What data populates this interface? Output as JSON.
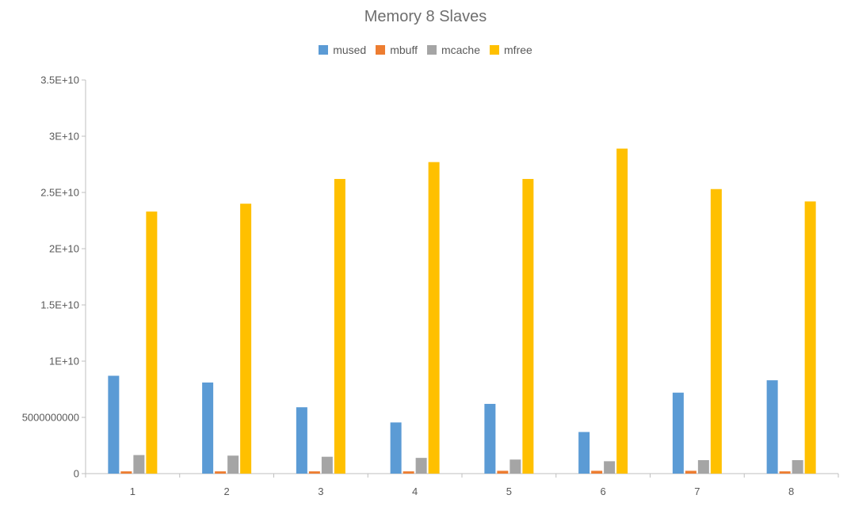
{
  "chart_data": {
    "type": "bar",
    "title": "Memory 8 Slaves",
    "xlabel": "",
    "ylabel": "",
    "categories": [
      "1",
      "2",
      "3",
      "4",
      "5",
      "6",
      "7",
      "8"
    ],
    "series": [
      {
        "name": "mused",
        "color": "#5b9bd5",
        "values": [
          8700000000,
          8100000000,
          5900000000,
          4550000000,
          6200000000,
          3700000000,
          7200000000,
          8300000000
        ]
      },
      {
        "name": "mbuff",
        "color": "#ed7d31",
        "values": [
          200000000,
          200000000,
          200000000,
          200000000,
          250000000,
          250000000,
          250000000,
          200000000
        ]
      },
      {
        "name": "mcache",
        "color": "#a5a5a5",
        "values": [
          1650000000,
          1600000000,
          1500000000,
          1400000000,
          1250000000,
          1100000000,
          1200000000,
          1200000000
        ]
      },
      {
        "name": "mfree",
        "color": "#ffc000",
        "values": [
          23300000000,
          24000000000,
          26200000000,
          27700000000,
          26200000000,
          28900000000,
          25300000000,
          24200000000
        ]
      }
    ],
    "ylim": [
      0,
      35000000000
    ],
    "yticks": [
      {
        "value": 0,
        "label": "0"
      },
      {
        "value": 5000000000,
        "label": "5000000000"
      },
      {
        "value": 10000000000,
        "label": "1E+10"
      },
      {
        "value": 15000000000,
        "label": "1.5E+10"
      },
      {
        "value": 20000000000,
        "label": "2E+10"
      },
      {
        "value": 25000000000,
        "label": "2.5E+10"
      },
      {
        "value": 30000000000,
        "label": "3E+10"
      },
      {
        "value": 35000000000,
        "label": "3.5E+10"
      }
    ],
    "grid": false,
    "legend_position": "top"
  }
}
